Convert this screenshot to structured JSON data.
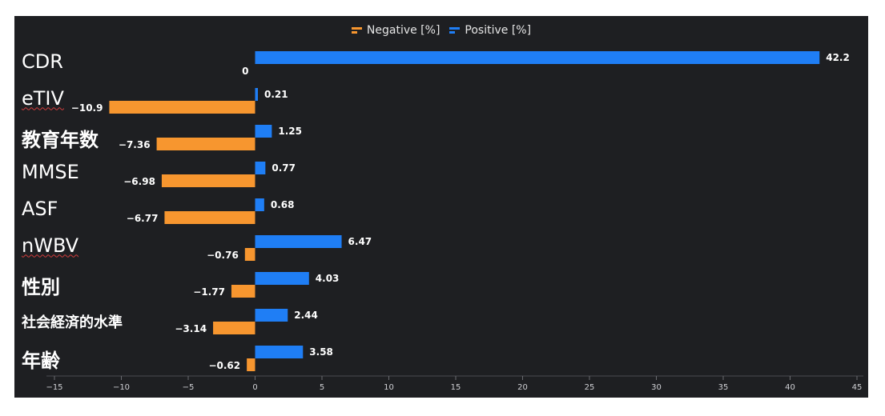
{
  "chart_data": {
    "type": "bar",
    "orientation": "horizontal",
    "categories": [
      "CDR",
      "eTIV",
      "教育年数",
      "MMSE",
      "ASF",
      "nWBV",
      "性別",
      "社会経済的水準",
      "年齢"
    ],
    "series": [
      {
        "name": "Negative [%]",
        "color": "#f7962f",
        "values": [
          0,
          -10.9,
          -7.36,
          -6.98,
          -6.77,
          -0.76,
          -1.77,
          -3.14,
          -0.62
        ]
      },
      {
        "name": "Positive [%]",
        "color": "#1f7ef5",
        "values": [
          42.2,
          0.21,
          1.25,
          0.77,
          0.68,
          6.47,
          4.03,
          2.44,
          3.58
        ]
      }
    ],
    "xlim": [
      -15,
      45
    ],
    "xticks": [
      -15,
      -10,
      -5,
      0,
      5,
      10,
      15,
      20,
      25,
      30,
      35,
      40,
      45
    ],
    "legend_position": "top-center",
    "grid": false,
    "background": "#1e1f22"
  }
}
